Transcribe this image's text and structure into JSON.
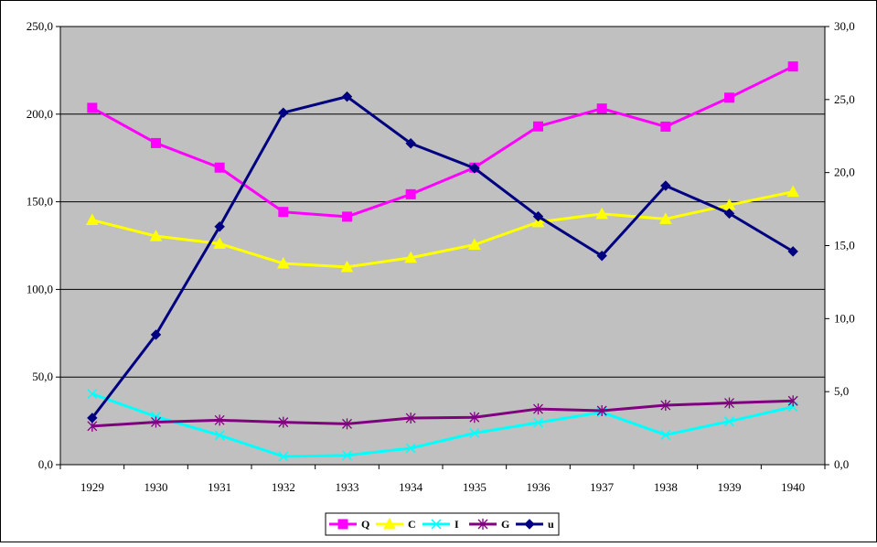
{
  "chart_data": {
    "type": "line",
    "title": "",
    "xlabel": "",
    "ylabel": "",
    "categories": [
      "1929",
      "1930",
      "1931",
      "1932",
      "1933",
      "1934",
      "1935",
      "1936",
      "1937",
      "1938",
      "1939",
      "1940"
    ],
    "y_left": {
      "range": [
        0,
        250
      ],
      "ticks": [
        "0,0",
        "50,0",
        "100,0",
        "150,0",
        "200,0",
        "250,0"
      ],
      "tick_values": [
        0,
        50,
        100,
        150,
        200,
        250
      ]
    },
    "y_right": {
      "range": [
        0,
        30
      ],
      "ticks": [
        "0,0",
        "5,0",
        "10,0",
        "15,0",
        "20,0",
        "25,0",
        "30,0"
      ],
      "tick_values": [
        0,
        5,
        10,
        15,
        20,
        25,
        30
      ]
    },
    "grid": true,
    "legend_position": "bottom",
    "plot_background": "#c0c0c0",
    "series": [
      {
        "name": "Q",
        "axis": "left",
        "color": "#ff00ff",
        "marker": "square",
        "values": [
          203.6,
          183.5,
          169.5,
          144.2,
          141.5,
          154.3,
          169.5,
          193.0,
          203.2,
          192.9,
          209.4,
          227.2
        ]
      },
      {
        "name": "C",
        "axis": "left",
        "color": "#ffff00",
        "marker": "triangle",
        "values": [
          139.6,
          130.4,
          126.1,
          114.8,
          112.8,
          118.1,
          125.5,
          138.4,
          143.1,
          140.2,
          148.2,
          155.7
        ]
      },
      {
        "name": "I",
        "axis": "left",
        "color": "#00ffff",
        "marker": "x",
        "values": [
          40.4,
          27.4,
          16.8,
          4.7,
          5.3,
          9.4,
          18.0,
          24.0,
          29.9,
          17.0,
          24.7,
          33.0
        ]
      },
      {
        "name": "G",
        "axis": "left",
        "color": "#800080",
        "marker": "star",
        "values": [
          22.0,
          24.3,
          25.4,
          24.2,
          23.3,
          26.6,
          27.0,
          31.8,
          30.8,
          33.9,
          35.2,
          36.4
        ]
      },
      {
        "name": "u",
        "axis": "right",
        "color": "#000080",
        "marker": "diamond",
        "values": [
          3.2,
          8.9,
          16.3,
          24.1,
          25.2,
          22.0,
          20.3,
          17.0,
          14.3,
          19.1,
          17.2,
          14.6
        ]
      }
    ]
  }
}
